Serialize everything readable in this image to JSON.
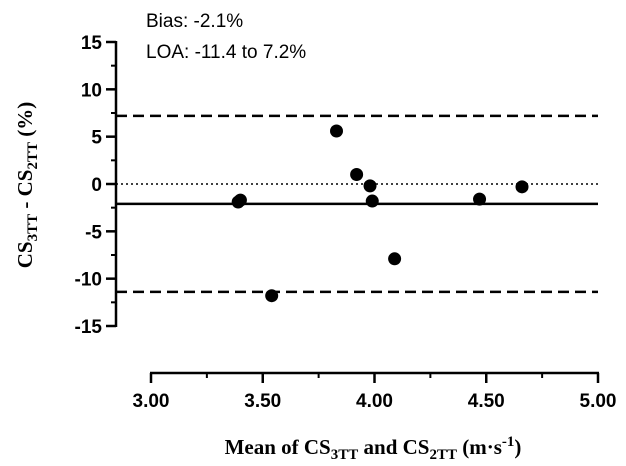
{
  "chart_data": {
    "type": "scatter",
    "title": "",
    "xlabel": {
      "parts": [
        {
          "text": "Mean of CS"
        },
        {
          "text": "3TT",
          "sub": true
        },
        {
          "text": " and CS"
        },
        {
          "text": "2TT",
          "sub": true
        },
        {
          "text": " (m·s"
        },
        {
          "text": "-1",
          "sup": true
        },
        {
          "text": ")"
        }
      ]
    },
    "ylabel": {
      "parts": [
        {
          "text": "CS"
        },
        {
          "text": "3TT",
          "sub": true
        },
        {
          "text": " - CS"
        },
        {
          "text": "2TT",
          "sub": true
        },
        {
          "text": " (%)"
        }
      ]
    },
    "xlim": [
      3.0,
      5.0
    ],
    "ylim": [
      -15,
      15
    ],
    "x_ticks": [
      "3.00",
      "3.50",
      "4.00",
      "4.50",
      "5.00"
    ],
    "y_ticks": [
      "15",
      "10",
      "5",
      "0",
      "-5",
      "-10",
      "-15"
    ],
    "grid": false,
    "points": [
      {
        "x": 3.39,
        "y": -1.9
      },
      {
        "x": 3.4,
        "y": -1.7
      },
      {
        "x": 3.54,
        "y": -11.8
      },
      {
        "x": 3.83,
        "y": 5.6
      },
      {
        "x": 3.92,
        "y": 1.0
      },
      {
        "x": 3.98,
        "y": -0.2
      },
      {
        "x": 3.99,
        "y": -1.8
      },
      {
        "x": 4.09,
        "y": -7.9
      },
      {
        "x": 4.47,
        "y": -1.6
      },
      {
        "x": 4.66,
        "y": -0.3
      }
    ],
    "reference_lines": [
      {
        "name": "bias",
        "y": -2.1,
        "style": "solid"
      },
      {
        "name": "upper-loa",
        "y": 7.2,
        "style": "dashed"
      },
      {
        "name": "lower-loa",
        "y": -11.4,
        "style": "dashed"
      },
      {
        "name": "zero",
        "y": 0,
        "style": "dotted"
      }
    ],
    "annotations": [
      "Bias: -2.1%",
      "LOA: -11.4 to 7.2%"
    ]
  }
}
